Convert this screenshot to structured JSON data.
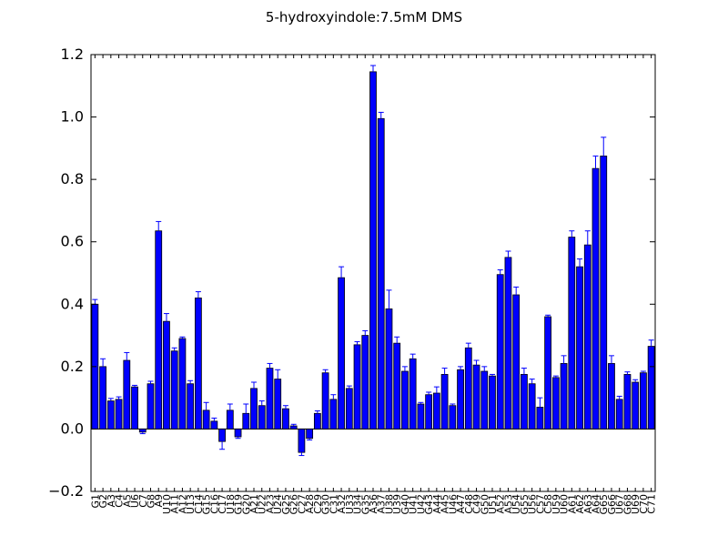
{
  "chart_data": {
    "type": "bar",
    "title": "5-hydroxyindole:7.5mM  DMS",
    "xlabel": "",
    "ylabel": "",
    "ylim": [
      -0.2,
      1.2
    ],
    "yticks": [
      "−0.2",
      "0.0",
      "0.2",
      "0.4",
      "0.6",
      "0.8",
      "1.0",
      "1.2"
    ],
    "bar_color": "#0000ff",
    "error_color": "#0000ff",
    "grid": false,
    "legend": "none",
    "categories": [
      "G1",
      "G2",
      "A3",
      "C4",
      "A5",
      "U6",
      "C7",
      "G8",
      "A9",
      "U10",
      "A11",
      "A12",
      "U13",
      "C14",
      "G15",
      "C16",
      "C17",
      "U18",
      "G19",
      "G20",
      "A21",
      "U22",
      "A23",
      "U24",
      "G25",
      "G26",
      "C27",
      "A28",
      "C29",
      "G30",
      "C31",
      "A32",
      "U33",
      "U34",
      "G35",
      "A36",
      "A37",
      "U38",
      "U39",
      "G40",
      "U41",
      "U42",
      "G43",
      "A44",
      "A45",
      "U46",
      "A47",
      "C48",
      "C49",
      "G50",
      "U51",
      "A52",
      "A53",
      "U54",
      "G55",
      "U56",
      "C57",
      "C58",
      "U59",
      "U60",
      "A61",
      "A62",
      "A63",
      "A64",
      "G65",
      "G66",
      "U67",
      "G68",
      "U69",
      "C70",
      "C71"
    ],
    "values": [
      0.4,
      0.2,
      0.09,
      0.095,
      0.22,
      0.135,
      -0.01,
      0.145,
      0.635,
      0.345,
      0.25,
      0.29,
      0.145,
      0.42,
      0.06,
      0.025,
      -0.04,
      0.06,
      -0.025,
      0.05,
      0.13,
      0.075,
      0.195,
      0.16,
      0.065,
      0.01,
      -0.075,
      -0.03,
      0.05,
      0.18,
      0.095,
      0.485,
      0.13,
      0.27,
      0.3,
      1.145,
      0.995,
      0.385,
      0.275,
      0.185,
      0.225,
      0.08,
      0.11,
      0.115,
      0.175,
      0.075,
      0.19,
      0.26,
      0.205,
      0.185,
      0.17,
      0.495,
      0.55,
      0.43,
      0.175,
      0.145,
      0.07,
      0.36,
      0.165,
      0.21,
      0.615,
      0.52,
      0.59,
      0.835,
      0.875,
      0.21,
      0.095,
      0.175,
      0.15,
      0.18,
      0.265
    ],
    "errors": [
      0.015,
      0.025,
      0.008,
      0.008,
      0.025,
      0.005,
      0.005,
      0.008,
      0.03,
      0.025,
      0.01,
      0.005,
      0.01,
      0.02,
      0.025,
      0.01,
      0.025,
      0.02,
      0.005,
      0.03,
      0.02,
      0.015,
      0.015,
      0.03,
      0.01,
      0.005,
      0.01,
      0.005,
      0.008,
      0.01,
      0.015,
      0.035,
      0.008,
      0.01,
      0.015,
      0.02,
      0.02,
      0.06,
      0.02,
      0.015,
      0.015,
      0.005,
      0.008,
      0.02,
      0.02,
      0.005,
      0.01,
      0.015,
      0.015,
      0.015,
      0.005,
      0.015,
      0.02,
      0.025,
      0.02,
      0.015,
      0.03,
      0.005,
      0.005,
      0.025,
      0.02,
      0.025,
      0.045,
      0.04,
      0.06,
      0.025,
      0.01,
      0.008,
      0.008,
      0.005,
      0.02
    ]
  }
}
